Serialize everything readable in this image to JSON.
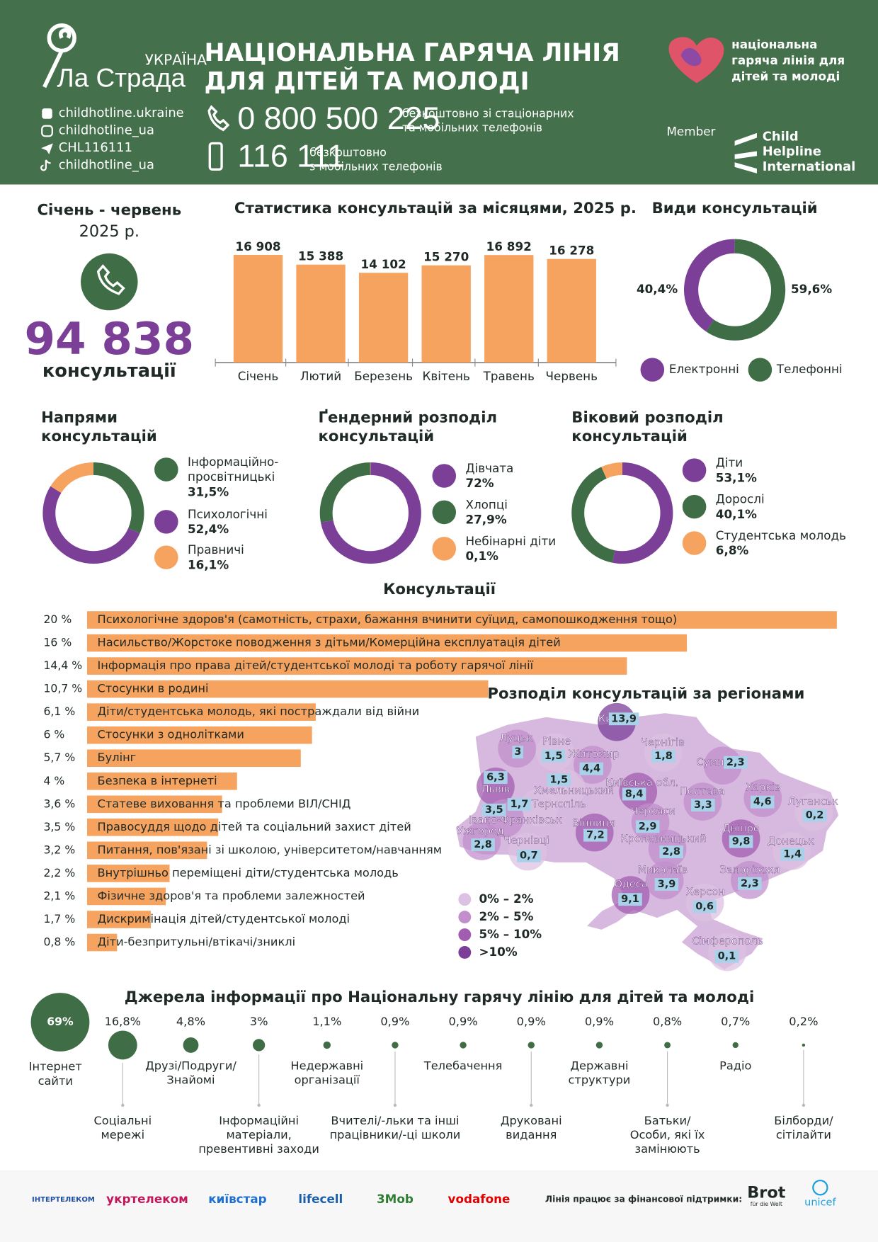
{
  "header": {
    "brand_small": "УКРАЇНА",
    "brand": "Ла Страда",
    "title": [
      "НАЦІОНАЛЬНА ГАРЯЧА ЛІНІЯ",
      "ДЛЯ ДІТЕЙ ТА МОЛОДІ"
    ],
    "socials": [
      "childhotline.ukraine",
      "childhotline_ua",
      "CHL116111",
      "childhotline_ua"
    ],
    "phones": [
      {
        "number": "0 800 500 225",
        "note": [
          "безкоштовно зі стаціонарних",
          "та мобільних телефонів"
        ]
      },
      {
        "number": "116 111",
        "note": [
          "безкоштовно",
          "з мобільних телефонів"
        ]
      }
    ],
    "partner_logo": [
      "національна",
      "гаряча лінія для",
      "дітей та молоді"
    ],
    "member": "Member",
    "member_logo": [
      "Child",
      "Helpline",
      "International"
    ]
  },
  "summary": {
    "period": "Січень - червень",
    "year": "2025 р.",
    "total": "94 838",
    "unit": "консультації"
  },
  "monthly": {
    "title": "Статистика консультацій за місяцями, 2025 р.",
    "categories": [
      "Січень",
      "Лютий",
      "Березень",
      "Квітень",
      "Травень",
      "Червень"
    ],
    "values": [
      16908,
      15388,
      14102,
      15270,
      16892,
      16278
    ],
    "value_labels": [
      "16 908",
      "15 388",
      "14 102",
      "15 270",
      "16 892",
      "16 278"
    ],
    "color": "#f5a35e"
  },
  "types": {
    "title": "Види консультацій",
    "series": [
      {
        "name": "Електронні",
        "value": 40.4,
        "label": "40,4%",
        "color": "#7b3f98"
      },
      {
        "name": "Телефонні",
        "value": 59.6,
        "label": "59,6%",
        "color": "#3e6d46"
      }
    ]
  },
  "directions": {
    "title": [
      "Напрями",
      "консультацій"
    ],
    "series": [
      {
        "name": [
          "Інформаційно-",
          "просвітницькі"
        ],
        "value": 31.5,
        "label": "31,5%",
        "color": "#3e6d46"
      },
      {
        "name": [
          "Психологічні"
        ],
        "value": 52.4,
        "label": "52,4%",
        "color": "#7b3f98"
      },
      {
        "name": [
          "Правничі"
        ],
        "value": 16.1,
        "label": "16,1%",
        "color": "#f5a35e"
      }
    ]
  },
  "gender": {
    "title": [
      "Ґендерний розподіл",
      "консультацій"
    ],
    "series": [
      {
        "name": [
          "Дівчата"
        ],
        "value": 72,
        "label": "72%",
        "color": "#7b3f98"
      },
      {
        "name": [
          "Хлопці"
        ],
        "value": 27.9,
        "label": "27,9%",
        "color": "#3e6d46"
      },
      {
        "name": [
          "Небінарні діти"
        ],
        "value": 0.1,
        "label": "0,1%",
        "color": "#f5a35e"
      }
    ]
  },
  "age": {
    "title": [
      "Віковий розподіл",
      "консультацій"
    ],
    "series": [
      {
        "name": [
          "Діти"
        ],
        "value": 53.1,
        "label": "53,1%",
        "color": "#7b3f98"
      },
      {
        "name": [
          "Дорослі"
        ],
        "value": 40.1,
        "label": "40,1%",
        "color": "#3e6d46"
      },
      {
        "name": [
          "Студентська молодь"
        ],
        "value": 6.8,
        "label": "6,8%",
        "color": "#f5a35e"
      }
    ]
  },
  "topics": {
    "title": "Консультації",
    "color": "#f5a35e",
    "items": [
      {
        "label": "20 %",
        "value": 20,
        "name": "Психологічне здоров'я (самотність, страхи, бажання вчинити суїцид, самопошкодження тощо)"
      },
      {
        "label": "16 %",
        "value": 16,
        "name": "Насильство/Жорстоке поводження з дітьми/Комерційна експлуатація дітей"
      },
      {
        "label": "14,4 %",
        "value": 14.4,
        "name": "Інформація про права дітей/студентської молоді та роботу гарячої лінії"
      },
      {
        "label": "10,7 %",
        "value": 10.7,
        "name": "Стосунки в родині"
      },
      {
        "label": "6,1 %",
        "value": 6.1,
        "name": "Діти/студентська молодь, які постраждали від війни"
      },
      {
        "label": "6 %",
        "value": 6,
        "name": "Стосунки з однолітками"
      },
      {
        "label": "5,7 %",
        "value": 5.7,
        "name": "Булінг"
      },
      {
        "label": "4 %",
        "value": 4,
        "name": "Безпека в інтернеті"
      },
      {
        "label": "3,6 %",
        "value": 3.6,
        "name": "Статеве виховання та проблеми ВІЛ/СНІД"
      },
      {
        "label": "3,5 %",
        "value": 3.5,
        "name": "Правосуддя щодо дітей та соціальний захист дітей"
      },
      {
        "label": "3,2 %",
        "value": 3.2,
        "name": "Питання, пов'язані зі школою, університетом/навчанням"
      },
      {
        "label": "2,2 %",
        "value": 2.2,
        "name": "Внутрішньо переміщені діти/студентська молодь"
      },
      {
        "label": "2,1 %",
        "value": 2.1,
        "name": "Фізичне здоров'я та проблеми залежностей"
      },
      {
        "label": "1,7 %",
        "value": 1.7,
        "name": "Дискримінація дітей/студентської молоді"
      },
      {
        "label": "0,8 %",
        "value": 0.8,
        "name": "Діти-безпритульні/втікачі/зниклі"
      }
    ]
  },
  "regions": {
    "title": "Розподіл консультацій за регіонами",
    "legend": [
      {
        "label": "0% – 2%",
        "from": 0,
        "to": 2,
        "color": "#dcc1e2"
      },
      {
        "label": "2% – 5%",
        "from": 2,
        "to": 5,
        "color": "#c28fcc"
      },
      {
        "label": "5% – 10%",
        "from": 5,
        "to": 10,
        "color": "#a15daf"
      },
      {
        "label": ">10%",
        "from": 10,
        "color": "#7b3f98"
      }
    ],
    "items": [
      {
        "name": "Київ",
        "value": 13.9,
        "label": "13,9"
      },
      {
        "name": "Луцьк",
        "value": 3,
        "label": "3"
      },
      {
        "name": "Рівне",
        "value": 1.5,
        "label": "1,5"
      },
      {
        "name": "Житомир",
        "value": 4.4,
        "label": "4,4"
      },
      {
        "name": "Чернігів",
        "value": 1.8,
        "label": "1,8"
      },
      {
        "name": "Суми",
        "value": 2.3,
        "label": "2,3"
      },
      {
        "name": "Львів",
        "value": 6.3,
        "label": "6,3"
      },
      {
        "name": "Хмельницький",
        "value": 1.5,
        "label": "1,5"
      },
      {
        "name": "Київська обл.",
        "value": 8.4,
        "label": "8,4"
      },
      {
        "name": "Полтава",
        "value": 3.3,
        "label": "3,3"
      },
      {
        "name": "Харків",
        "value": 4.6,
        "label": "4,6"
      },
      {
        "name": "Луганськ",
        "value": 0.2,
        "label": "0,2"
      },
      {
        "name": "Тернопіль",
        "value": 1.7,
        "label": "1,7"
      },
      {
        "name": "Івано-Франківськ",
        "value": 3.5,
        "label": "3,5"
      },
      {
        "name": "Черкаси",
        "value": 2.9,
        "label": "2,9"
      },
      {
        "name": "Вінниця",
        "value": 7.2,
        "label": "7,2"
      },
      {
        "name": "Ужгород",
        "value": 2.8,
        "label": "2,8"
      },
      {
        "name": "Чернівці",
        "value": 0.7,
        "label": "0,7"
      },
      {
        "name": "Кропивницький",
        "value": 2.8,
        "label": "2,8"
      },
      {
        "name": "Дніпро",
        "value": 9.8,
        "label": "9,8"
      },
      {
        "name": "Донецьк",
        "value": 1.4,
        "label": "1,4"
      },
      {
        "name": "Миколаїв",
        "value": 3.9,
        "label": "3,9"
      },
      {
        "name": "Запоріжжя",
        "value": 2.3,
        "label": "2,3"
      },
      {
        "name": "Одеса",
        "value": 9.1,
        "label": "9,1"
      },
      {
        "name": "Херсон",
        "value": 0.6,
        "label": "0,6"
      },
      {
        "name": "Сімферополь",
        "value": 0.1,
        "label": "0,1"
      }
    ]
  },
  "sources": {
    "title": "Джерела інформації про Національну гарячу лінію для дітей та молоді",
    "color": "#3e6d46",
    "items": [
      {
        "name": [
          "Інтернет",
          "сайти"
        ],
        "value": 69,
        "label": "69%"
      },
      {
        "name": [
          "Соціальні",
          "мережі"
        ],
        "value": 16.8,
        "label": "16,8%"
      },
      {
        "name": [
          "Друзі/Подруги/",
          "Знайомі"
        ],
        "value": 4.8,
        "label": "4,8%"
      },
      {
        "name": [
          "Інформаційні",
          "матеріали,",
          "превентивні заходи"
        ],
        "value": 3,
        "label": "3%"
      },
      {
        "name": [
          "Недержавні",
          "організації"
        ],
        "value": 1.1,
        "label": "1,1%"
      },
      {
        "name": [
          "Вчителі/-льки та інші",
          "працівники/-ці школи"
        ],
        "value": 0.9,
        "label": "0,9%"
      },
      {
        "name": [
          "Телебачення"
        ],
        "value": 0.9,
        "label": "0,9%"
      },
      {
        "name": [
          "Друковані",
          "видання"
        ],
        "value": 0.9,
        "label": "0,9%"
      },
      {
        "name": [
          "Державні",
          "структури"
        ],
        "value": 0.9,
        "label": "0,9%"
      },
      {
        "name": [
          "Батьки/",
          "Особи, які їх",
          "замінюють"
        ],
        "value": 0.8,
        "label": "0,8%"
      },
      {
        "name": [
          "Радіо"
        ],
        "value": 0.7,
        "label": "0,7%"
      },
      {
        "name": [
          "Білборди/",
          "сітілайти"
        ],
        "value": 0.2,
        "label": "0,2%"
      }
    ]
  },
  "footer": {
    "operators": [
      "ІНТЕРТЕЛЕКОМ",
      "укртелеком",
      "київстар",
      "lifecell",
      "3Mob",
      "vodafone"
    ],
    "support": "Лінія працює за фінансової підтримки:",
    "donors": [
      "Brot",
      "für die Welt",
      "unicef"
    ]
  }
}
